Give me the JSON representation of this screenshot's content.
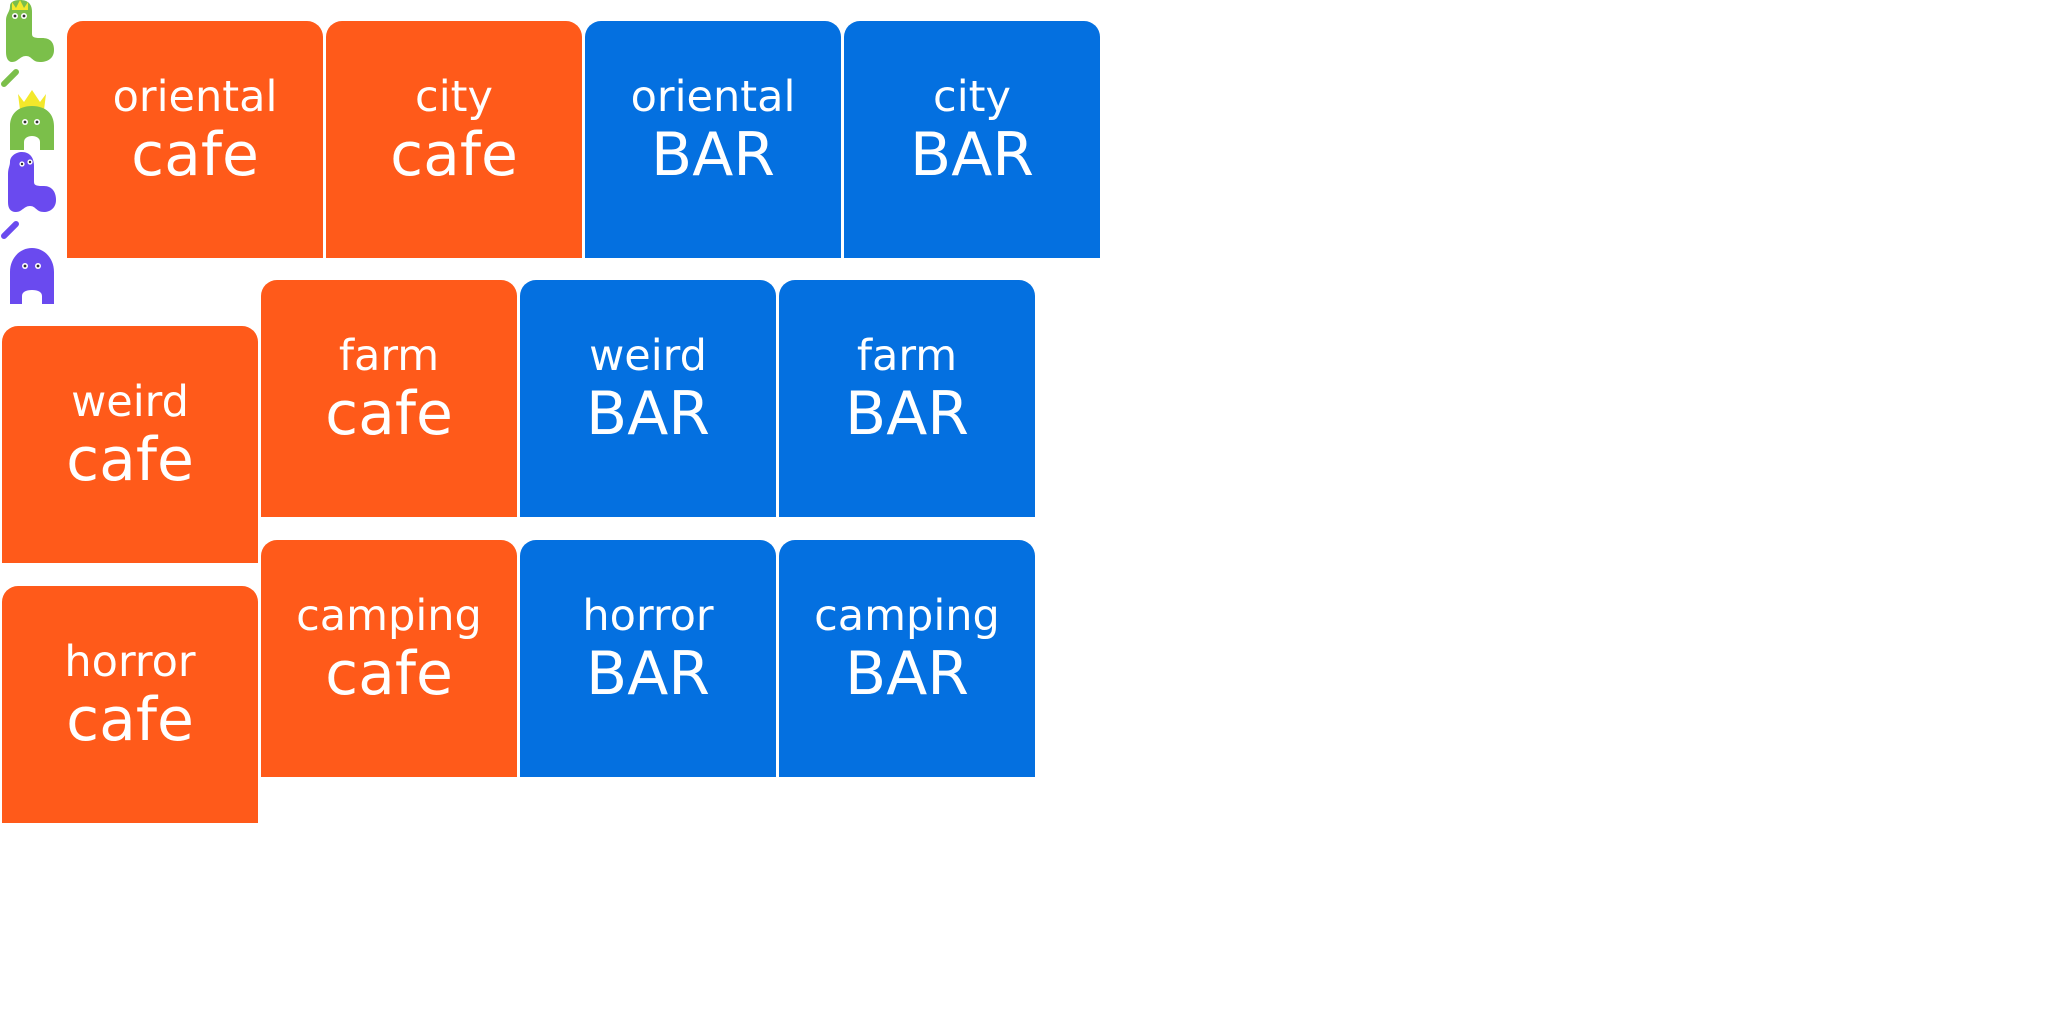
{
  "colors": {
    "cafe": "#ff5a1a",
    "bar": "#0470e0",
    "green_creature": "#7bbf4a",
    "purple_creature": "#6a4aef",
    "crown": "#f3e82b"
  },
  "tiles": {
    "oriental_cafe": {
      "top": "oriental",
      "bottom": "cafe"
    },
    "city_cafe": {
      "top": "city",
      "bottom": "cafe"
    },
    "oriental_bar": {
      "top": "oriental",
      "bottom": "BAR"
    },
    "city_bar": {
      "top": "city",
      "bottom": "BAR"
    },
    "weird_cafe": {
      "top": "weird",
      "bottom": "cafe"
    },
    "farm_cafe": {
      "top": "farm",
      "bottom": "cafe"
    },
    "weird_bar": {
      "top": "weird",
      "bottom": "BAR"
    },
    "farm_bar": {
      "top": "farm",
      "bottom": "BAR"
    },
    "horror_cafe": {
      "top": "horror",
      "bottom": "cafe"
    },
    "camping_cafe": {
      "top": "camping",
      "bottom": "cafe"
    },
    "horror_bar": {
      "top": "horror",
      "bottom": "BAR"
    },
    "camping_bar": {
      "top": "camping",
      "bottom": "BAR"
    }
  },
  "sprites": [
    "green-creature-icon",
    "green-arm-icon",
    "green-crowned-creature-icon",
    "purple-creature-icon",
    "purple-arm-icon",
    "purple-ghost-icon"
  ]
}
